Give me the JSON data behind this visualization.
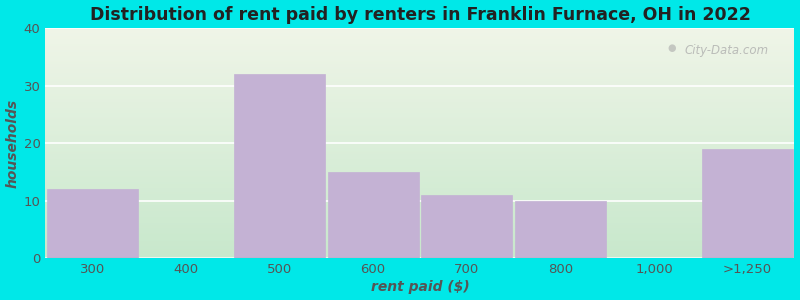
{
  "categories": [
    "300",
    "400",
    "500",
    "600",
    "700",
    "800",
    "1,000",
    ">1,250"
  ],
  "values": [
    12,
    0,
    32,
    15,
    11,
    10,
    0,
    19
  ],
  "bar_color": "#c4b2d4",
  "bar_edge_color": "#c4b2d4",
  "title": "Distribution of rent paid by renters in Franklin Furnace, OH in 2022",
  "xlabel": "rent paid ($)",
  "ylabel": "households",
  "ylim": [
    0,
    40
  ],
  "yticks": [
    0,
    10,
    20,
    30,
    40
  ],
  "bg_color": "#00e8e8",
  "plot_bg_top_color": "#f0f5e8",
  "plot_bg_bottom_color": "#c8e8cc",
  "title_fontsize": 12.5,
  "axis_label_fontsize": 10,
  "tick_fontsize": 9.5,
  "watermark": "City-Data.com",
  "grid_color": "#e0e8d8"
}
